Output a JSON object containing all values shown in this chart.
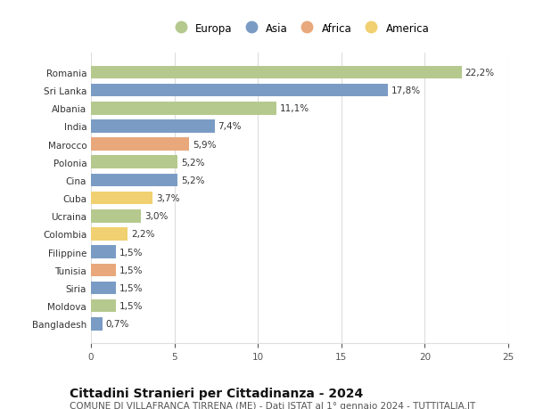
{
  "countries": [
    "Bangladesh",
    "Moldova",
    "Siria",
    "Tunisia",
    "Filippine",
    "Colombia",
    "Ucraina",
    "Cuba",
    "Cina",
    "Polonia",
    "Marocco",
    "India",
    "Albania",
    "Sri Lanka",
    "Romania"
  ],
  "values": [
    0.7,
    1.5,
    1.5,
    1.5,
    1.5,
    2.2,
    3.0,
    3.7,
    5.2,
    5.2,
    5.9,
    7.4,
    11.1,
    17.8,
    22.2
  ],
  "labels": [
    "0,7%",
    "1,5%",
    "1,5%",
    "1,5%",
    "1,5%",
    "2,2%",
    "3,0%",
    "3,7%",
    "5,2%",
    "5,2%",
    "5,9%",
    "7,4%",
    "11,1%",
    "17,8%",
    "22,2%"
  ],
  "continents": [
    "Asia",
    "Europa",
    "Asia",
    "Africa",
    "Asia",
    "America",
    "Europa",
    "America",
    "Asia",
    "Europa",
    "Africa",
    "Asia",
    "Europa",
    "Asia",
    "Europa"
  ],
  "continent_colors": {
    "Europa": "#b5c98e",
    "Asia": "#7a9cc4",
    "Africa": "#e8a87c",
    "America": "#f0d070"
  },
  "legend_order": [
    "Europa",
    "Asia",
    "Africa",
    "America"
  ],
  "title": "Cittadini Stranieri per Cittadinanza - 2024",
  "subtitle": "COMUNE DI VILLAFRANCA TIRRENA (ME) - Dati ISTAT al 1° gennaio 2024 - TUTTITALIA.IT",
  "xlim": [
    0,
    25
  ],
  "xticks": [
    0,
    5,
    10,
    15,
    20,
    25
  ],
  "bg_color": "#ffffff",
  "grid_color": "#dddddd",
  "bar_height": 0.72,
  "title_fontsize": 10,
  "subtitle_fontsize": 7.5,
  "label_fontsize": 7.5,
  "tick_fontsize": 7.5,
  "legend_fontsize": 8.5
}
